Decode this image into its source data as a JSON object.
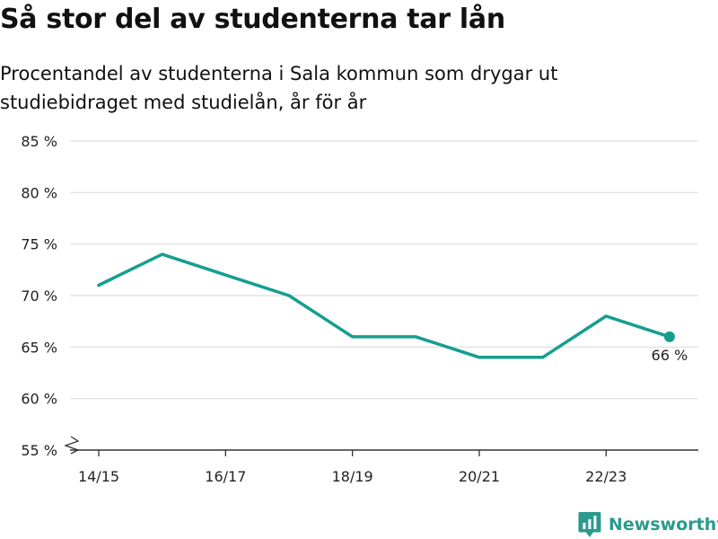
{
  "header": {
    "title": "Så stor del av studenterna tar lån",
    "subtitle": "Procentandel av studenterna i Sala kommun som drygar ut studiebidraget med studielån, år för år"
  },
  "brand": {
    "name": "Newsworthy",
    "icon": "newsworthy-logo-icon",
    "color": "#2a9a8c"
  },
  "chart_data": {
    "type": "line",
    "title": "Så stor del av studenterna tar lån",
    "subtitle": "Procentandel av studenterna i Sala kommun som drygar ut studiebidraget med studielån, år för år",
    "xlabel": "",
    "ylabel": "",
    "x": [
      "14/15",
      "15/16",
      "16/17",
      "17/18",
      "18/19",
      "19/20",
      "20/21",
      "21/22",
      "22/23",
      "23/24"
    ],
    "x_tick_labels": [
      "14/15",
      "16/17",
      "18/19",
      "20/21",
      "22/23"
    ],
    "series": [
      {
        "values": [
          71,
          74,
          72,
          70,
          66,
          66,
          64,
          64,
          68,
          66
        ],
        "color": "#159e8f"
      }
    ],
    "ylim": [
      55,
      85
    ],
    "y_ticks": [
      55,
      60,
      65,
      70,
      75,
      80,
      85
    ],
    "y_tick_labels": [
      "55 %",
      "60 %",
      "65 %",
      "70 %",
      "75 %",
      "80 %",
      "85 %"
    ],
    "y_axis_break": true,
    "grid": true,
    "legend": "none",
    "end_label": "66 %",
    "colors": {
      "line": "#159e8f",
      "grid": "#dddddd",
      "axis": "#333333"
    }
  }
}
